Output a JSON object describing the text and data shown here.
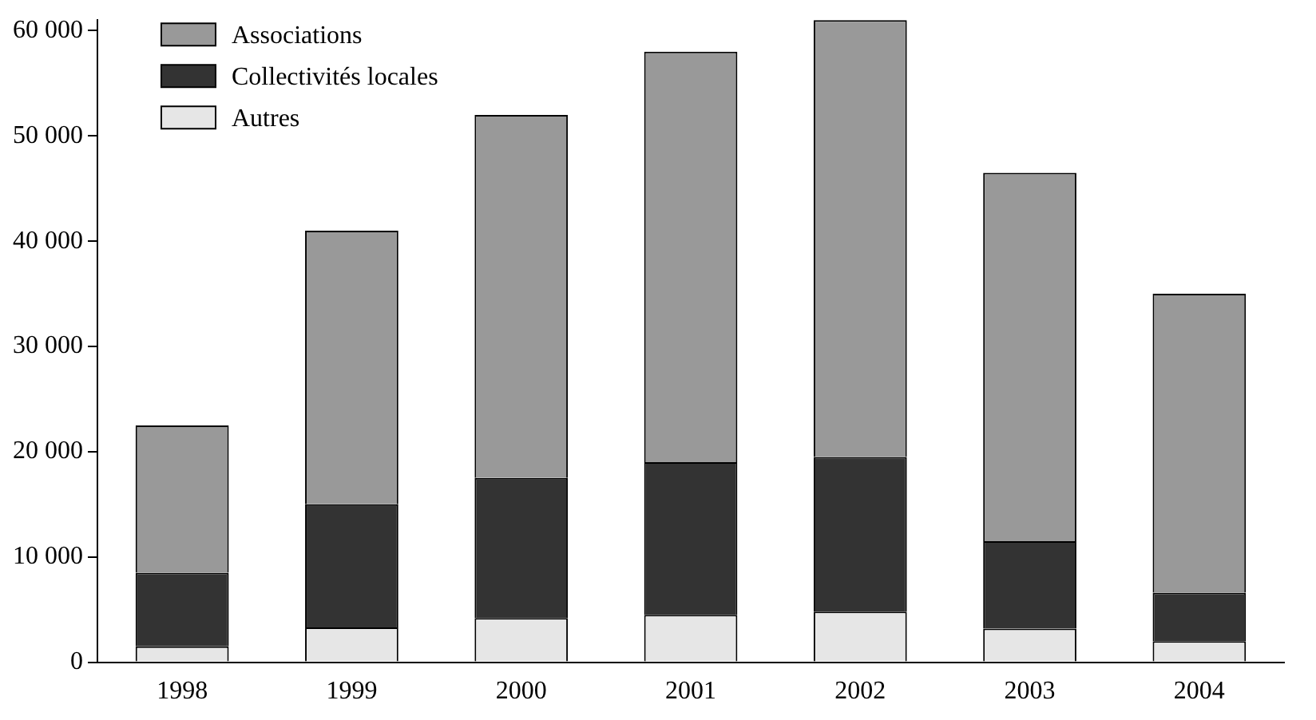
{
  "chart_data": {
    "type": "bar",
    "stacked": true,
    "categories": [
      "1998",
      "1999",
      "2000",
      "2001",
      "2002",
      "2003",
      "2004"
    ],
    "series": [
      {
        "name": "Autres",
        "color": "#e6e6e6",
        "values": [
          1500,
          3300,
          4200,
          4500,
          4800,
          3200,
          2000
        ]
      },
      {
        "name": "Collectivités locales",
        "color": "#333333",
        "values": [
          7000,
          11700,
          13300,
          14500,
          14700,
          8300,
          4600
        ]
      },
      {
        "name": "Associations",
        "color": "#999999",
        "values": [
          14000,
          26000,
          34500,
          39000,
          41500,
          35000,
          28400
        ]
      }
    ],
    "ylim": [
      0,
      61000
    ],
    "yticks": [
      0,
      {
        "value": 10000,
        "label": "10 000"
      },
      {
        "value": 20000,
        "label": "20 000"
      },
      {
        "value": 30000,
        "label": "30 000"
      },
      {
        "value": 40000,
        "label": "40 000"
      },
      {
        "value": 50000,
        "label": "50 000"
      },
      {
        "value": 60000,
        "label": "60 000"
      }
    ],
    "grid": false,
    "legend": "top left"
  }
}
